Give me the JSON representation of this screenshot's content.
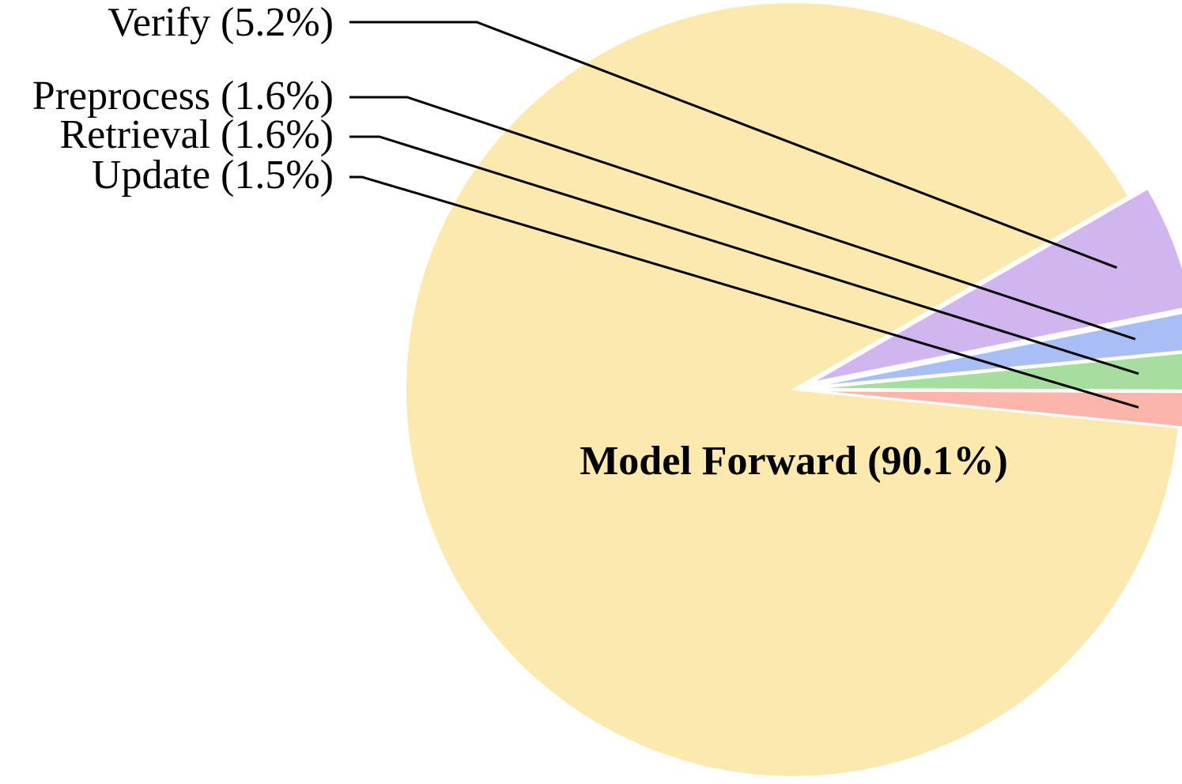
{
  "chart_data": {
    "type": "pie",
    "title": "",
    "slices": [
      {
        "key": "model_forward",
        "label": "Model Forward (90.1%)",
        "value": 90.1,
        "color": "#FCE9AE"
      },
      {
        "key": "update",
        "label": "Update (1.5%)",
        "value": 1.5,
        "color": "#FBB5AA"
      },
      {
        "key": "retrieval",
        "label": "Retrieval (1.6%)",
        "value": 1.6,
        "color": "#A5DE9E"
      },
      {
        "key": "preprocess",
        "label": "Preprocess (1.6%)",
        "value": 1.6,
        "color": "#A9BEF5"
      },
      {
        "key": "verify",
        "label": "Verify (5.2%)",
        "value": 5.2,
        "color": "#D0B5EE"
      }
    ],
    "exploded": [
      "update",
      "retrieval",
      "preprocess",
      "verify"
    ],
    "start_angle_deg": 30,
    "direction": "counterclockwise"
  }
}
